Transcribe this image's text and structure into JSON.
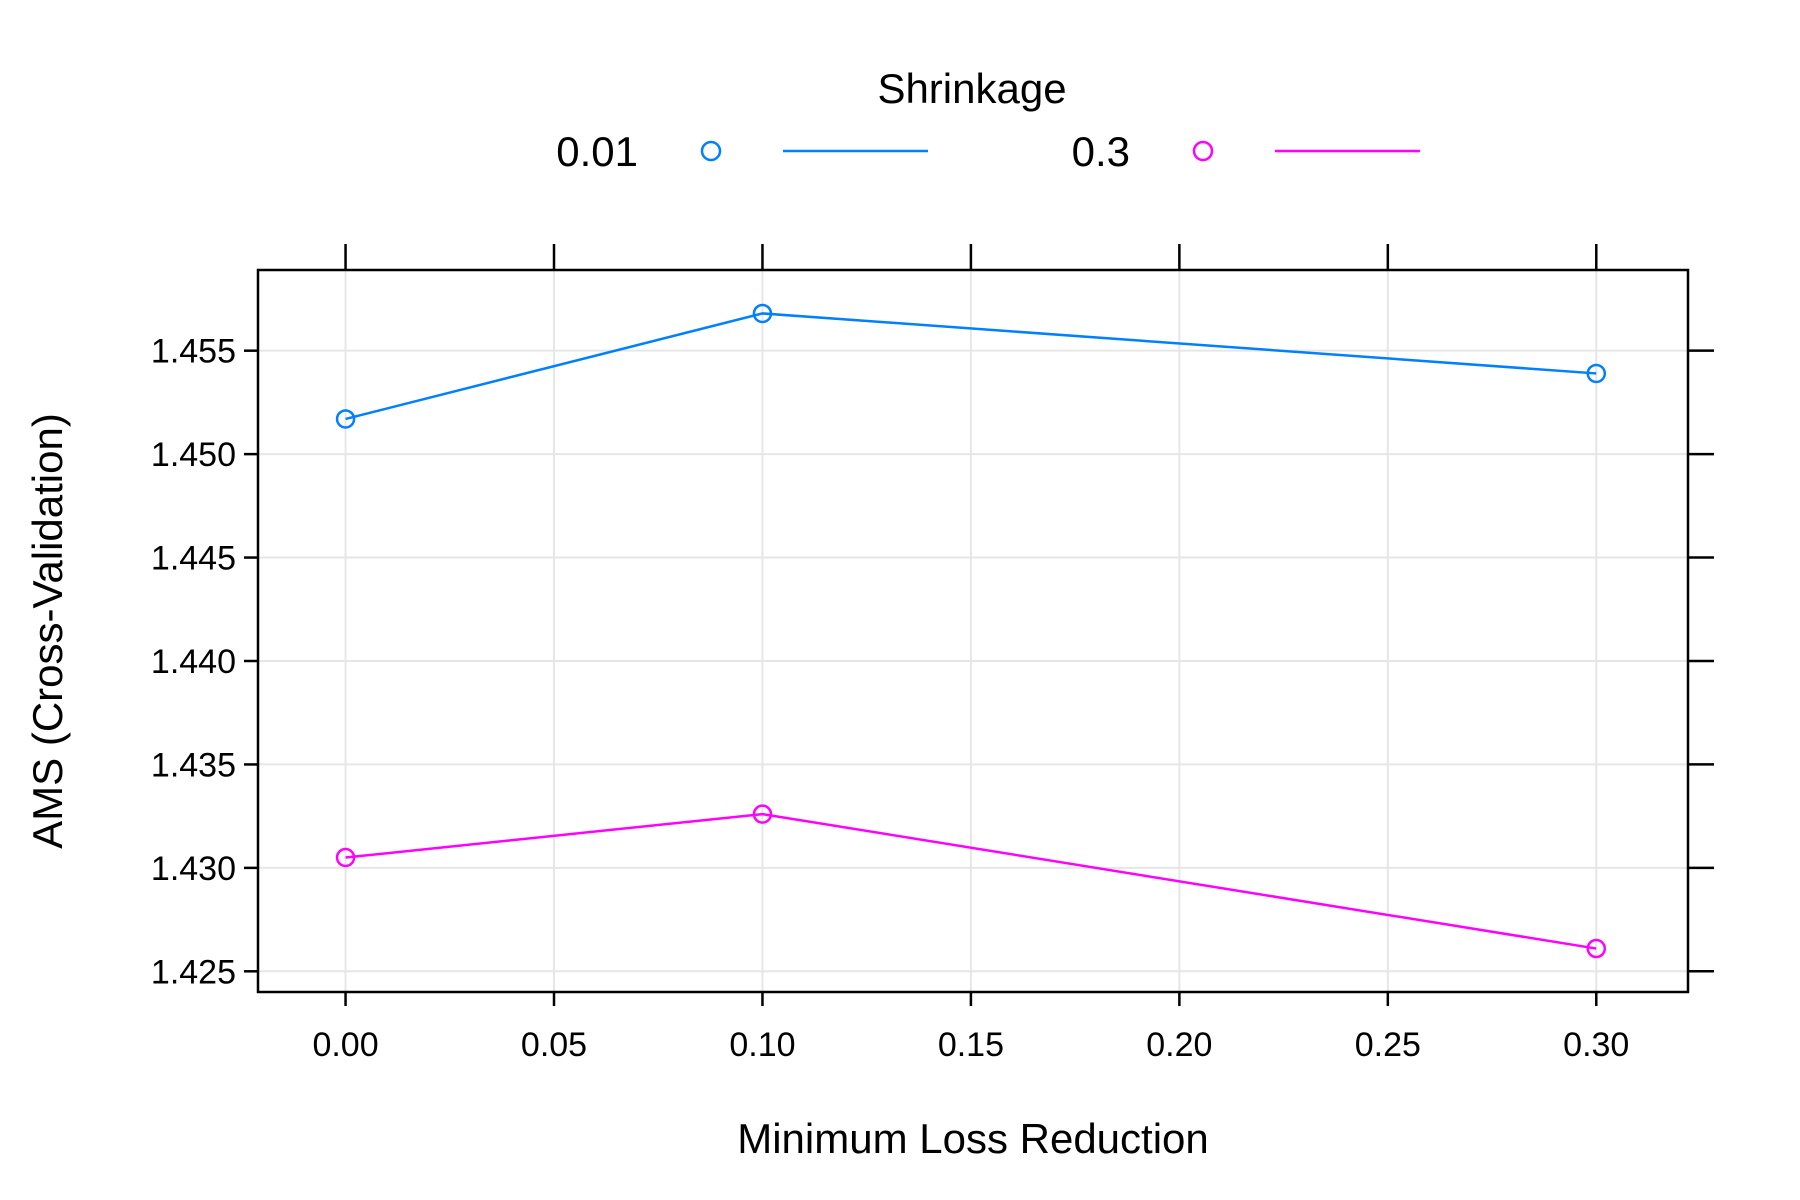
{
  "chart_data": {
    "type": "line",
    "xlabel": "Minimum Loss Reduction",
    "ylabel": "AMS (Cross-Validation)",
    "legend_title": "Shrinkage",
    "legend_position": "top",
    "grid": true,
    "x": [
      0.0,
      0.1,
      0.3
    ],
    "xticks": [
      "0.00",
      "0.05",
      "0.10",
      "0.15",
      "0.20",
      "0.25",
      "0.30"
    ],
    "xtick_values": [
      0.0,
      0.05,
      0.1,
      0.15,
      0.2,
      0.25,
      0.3
    ],
    "yticks": [
      "1.425",
      "1.430",
      "1.435",
      "1.440",
      "1.445",
      "1.450",
      "1.455"
    ],
    "ytick_values": [
      1.425,
      1.43,
      1.435,
      1.44,
      1.445,
      1.45,
      1.455
    ],
    "xlim": [
      -0.021,
      0.322
    ],
    "ylim": [
      1.424,
      1.4589
    ],
    "series": [
      {
        "name": "0.01",
        "color": "#0080ff",
        "marker": "circle",
        "values": [
          1.4517,
          1.4568,
          1.4539
        ]
      },
      {
        "name": "0.3",
        "color": "#ff00ff",
        "marker": "circle",
        "values": [
          1.4305,
          1.4326,
          1.4261
        ]
      }
    ]
  }
}
